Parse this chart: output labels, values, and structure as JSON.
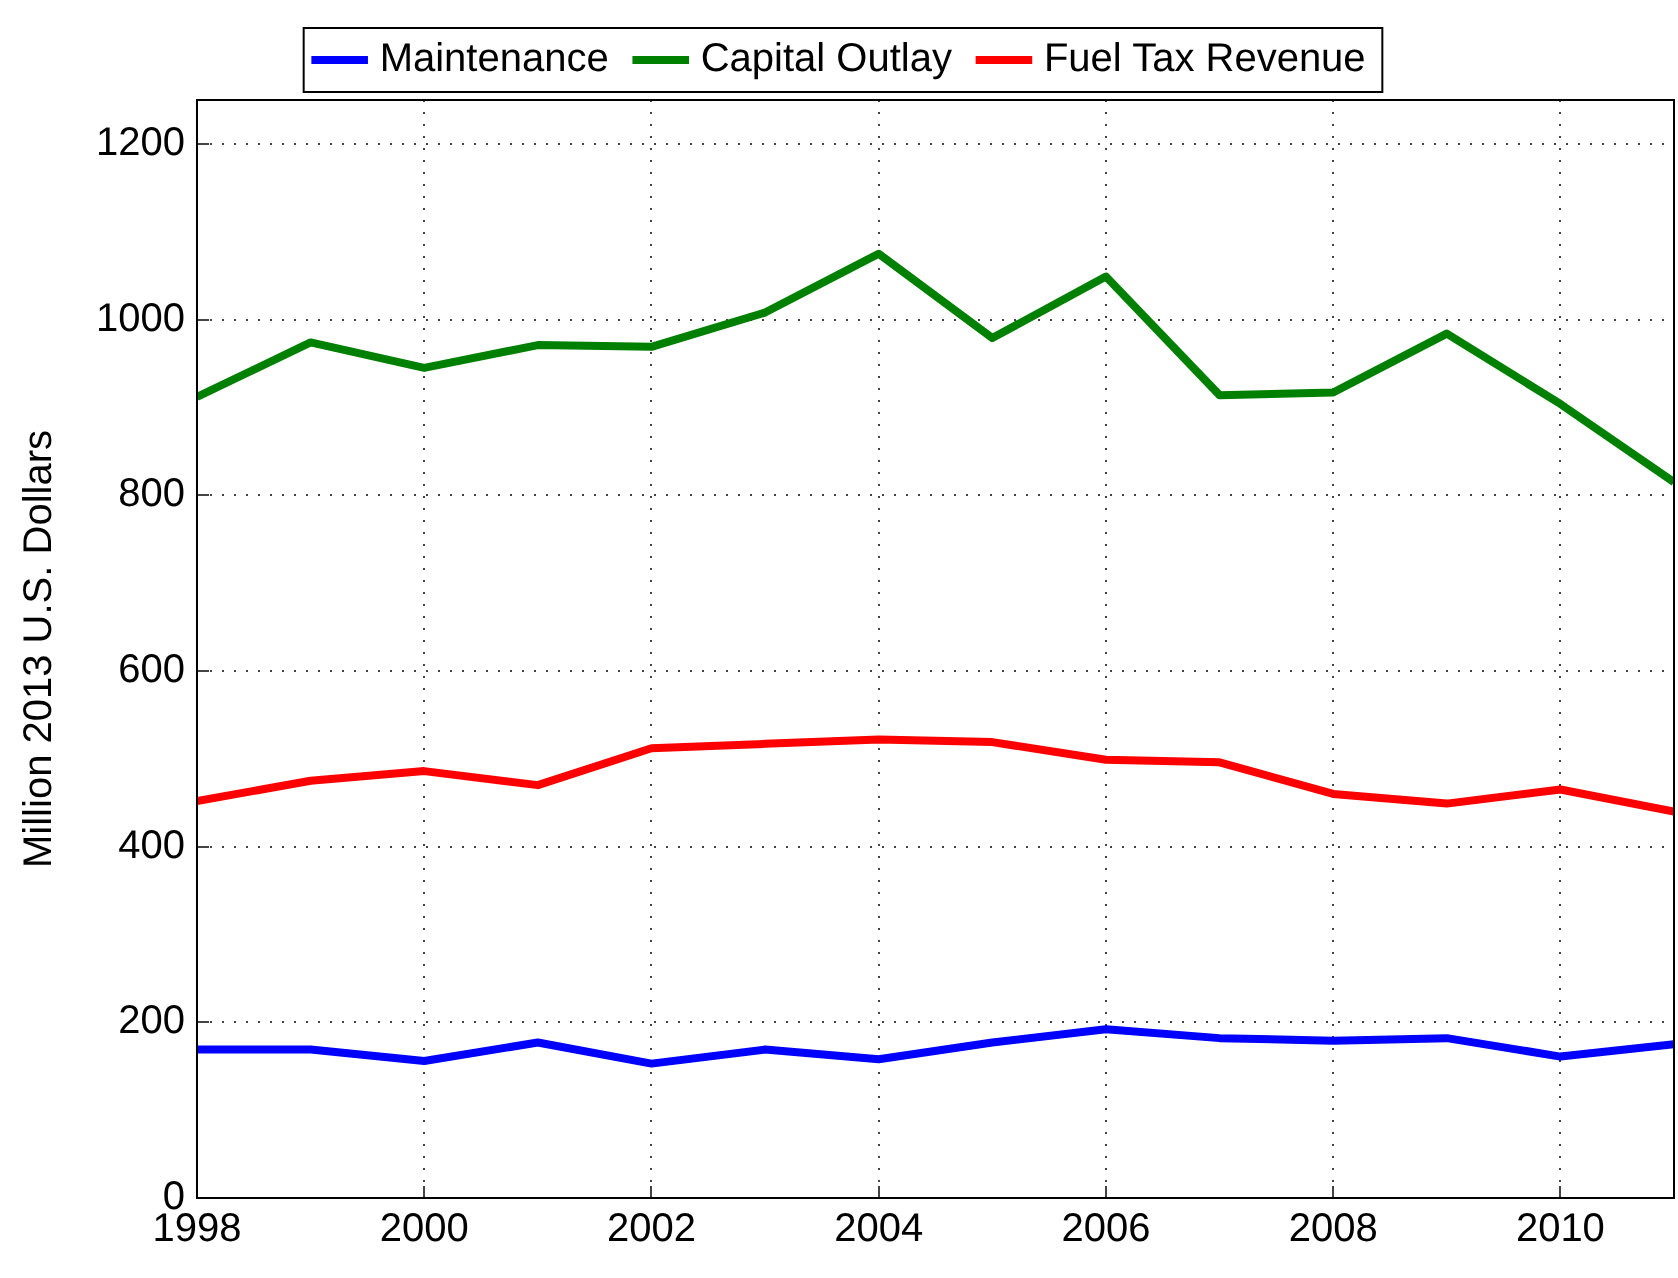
{
  "chart_data": {
    "type": "line",
    "ylabel": "Million 2013 U.S. Dollars",
    "x": [
      1998,
      1999,
      2000,
      2001,
      2002,
      2003,
      2004,
      2005,
      2006,
      2007,
      2008,
      2009,
      2010,
      2011
    ],
    "series": [
      {
        "name": "Maintenance",
        "color": "#0000ff",
        "values": [
          169,
          169,
          156,
          177,
          153,
          169,
          158,
          177,
          192,
          182,
          179,
          182,
          161,
          175
        ]
      },
      {
        "name": "Capital Outlay",
        "color": "#008000",
        "values": [
          912,
          974,
          945,
          971,
          969,
          1008,
          1075,
          979,
          1049,
          914,
          917,
          984,
          904,
          815
        ]
      },
      {
        "name": "Fuel Tax Revenue",
        "color": "#ff0000",
        "values": [
          452,
          475,
          486,
          470,
          512,
          517,
          522,
          519,
          499,
          496,
          460,
          449,
          465,
          440
        ]
      }
    ],
    "xlim": [
      1998,
      2011
    ],
    "xticks": [
      1998,
      2000,
      2002,
      2004,
      2006,
      2008,
      2010
    ],
    "ylim": [
      0,
      1250
    ],
    "yticks": [
      0,
      200,
      400,
      600,
      800,
      1000,
      1200
    ],
    "grid": true,
    "legend": "top",
    "marker": "none",
    "line_style": "solid"
  }
}
